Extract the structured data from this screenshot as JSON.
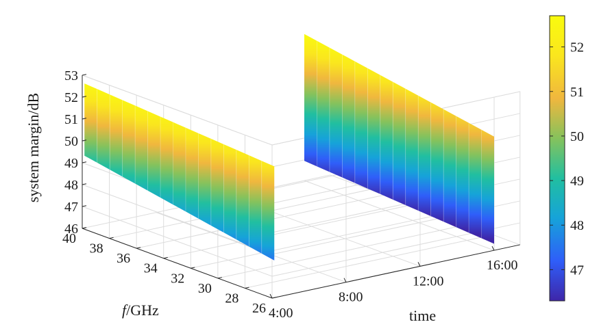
{
  "chart_data": {
    "type": "surface",
    "title": "",
    "xlabel": "time",
    "ylabel_prefix": "f",
    "ylabel_suffix": "/GHz",
    "zlabel": "system margin/dB",
    "x_ticks": [
      "4:00",
      "8:00",
      "12:00",
      "16:00"
    ],
    "y_ticks": [
      "40",
      "38",
      "36",
      "34",
      "32",
      "30",
      "28",
      "26"
    ],
    "z_ticks": [
      "46",
      "47",
      "48",
      "49",
      "50",
      "51",
      "52",
      "53"
    ],
    "zlim": [
      46,
      53
    ],
    "grid": true,
    "colorbar": {
      "ticks": [
        "47",
        "48",
        "49",
        "50",
        "51",
        "52"
      ],
      "range": [
        46.3,
        52.7
      ],
      "colormap": [
        "#3e26a8",
        "#2f5ef9",
        "#16a3d9",
        "#21bfa0",
        "#86c25c",
        "#f0b73e",
        "#fae61e",
        "#f9fb0e"
      ]
    },
    "surfaces": [
      {
        "name": "",
        "time": "4:00",
        "f_range_ghz": [
          40,
          26
        ],
        "margin_top_db": [
          52.6,
          52.0
        ],
        "margin_bottom_db": [
          49.3,
          47.7
        ]
      },
      {
        "name": "",
        "time": "16:00",
        "f_range_ghz": [
          40,
          26
        ],
        "margin_top_db": [
          52.7,
          51.2
        ],
        "margin_bottom_db": [
          46.9,
          46.3
        ]
      }
    ]
  }
}
